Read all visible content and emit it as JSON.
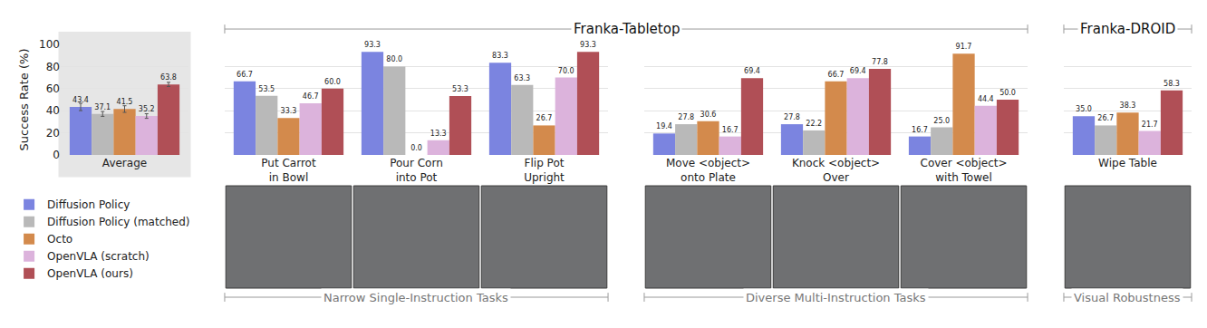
{
  "chart_data": {
    "type": "bar",
    "categories": [
      "Average",
      "Put Carrot\nin Bowl",
      "Pour Corn\ninto Pot",
      "Flip Pot\nUpright",
      "Move <object>\nonto Plate",
      "Knock <object>\nOver",
      "Cover <object>\nwith Towel",
      "Wipe Table"
    ],
    "y_label": "Success Rate (%)",
    "ylim": [
      0,
      100
    ],
    "yticks": [
      0,
      20,
      40,
      60,
      80,
      100
    ],
    "grid": true,
    "data_labels": true,
    "legend": "lower left",
    "series": [
      {
        "name": "Diffusion Policy",
        "color": "#7b84e0",
        "values": [
          43.4,
          66.7,
          93.3,
          83.3,
          19.4,
          27.8,
          16.7,
          35.0
        ],
        "value_labels": [
          "43.4",
          "66.7",
          "93.3",
          "83.3",
          "19.4",
          "27.8",
          "16.7",
          "35.0"
        ],
        "error": [
          3.3,
          null,
          null,
          null,
          null,
          null,
          null,
          null
        ]
      },
      {
        "name": "Diffusion Policy (matched)",
        "color": "#b9b9b9",
        "values": [
          37.1,
          53.5,
          80.0,
          63.3,
          27.8,
          22.2,
          25.0,
          26.7
        ],
        "value_labels": [
          "37.1",
          "53.5",
          "80.0",
          "63.3",
          "27.8",
          "22.2",
          "25.0",
          "26.7"
        ],
        "error": [
          2.2,
          null,
          null,
          null,
          null,
          null,
          null,
          null
        ]
      },
      {
        "name": "Octo",
        "color": "#d38a4c",
        "values": [
          41.5,
          33.3,
          0.0,
          26.7,
          30.6,
          66.7,
          91.7,
          38.3
        ],
        "value_labels": [
          "41.5",
          "33.3",
          "0.0",
          "26.7",
          "30.6",
          "66.7",
          "91.7",
          "38.3"
        ],
        "error": [
          3.0,
          null,
          null,
          null,
          null,
          null,
          null,
          null
        ]
      },
      {
        "name": "OpenVLA (scratch)",
        "color": "#dcb3dc",
        "values": [
          35.2,
          46.7,
          13.3,
          70.0,
          16.7,
          69.4,
          44.4,
          21.7
        ],
        "value_labels": [
          "35.2",
          "46.7",
          "13.3",
          "70.0",
          "16.7",
          "69.4",
          "44.4",
          "21.7"
        ],
        "error": [
          2.1,
          null,
          null,
          null,
          null,
          null,
          null,
          null
        ]
      },
      {
        "name": "OpenVLA (ours)",
        "color": "#b04f56",
        "values": [
          63.8,
          60.0,
          53.3,
          93.3,
          69.4,
          77.8,
          50.0,
          58.3
        ],
        "value_labels": [
          "63.8",
          "60.0",
          "53.3",
          "93.3",
          "69.4",
          "77.8",
          "50.0",
          "58.3"
        ],
        "error": [
          1.9,
          null,
          null,
          null,
          null,
          null,
          null,
          null
        ]
      }
    ],
    "group_labels": {
      "top": [
        {
          "text": "Franka-Tabletop",
          "categories": [
            "Put Carrot\nin Bowl",
            "Pour Corn\ninto Pot",
            "Flip Pot\nUpright",
            "Move <object>\nonto Plate",
            "Knock <object>\nOver",
            "Cover <object>\nwith Towel"
          ]
        },
        {
          "text": "Franka-DROID",
          "categories": [
            "Wipe Table"
          ]
        }
      ],
      "bottom": [
        {
          "text": "Narrow Single-Instruction Tasks",
          "categories": [
            "Put Carrot\nin Bowl",
            "Pour Corn\ninto Pot",
            "Flip Pot\nUpright"
          ]
        },
        {
          "text": "Diverse Multi-Instruction Tasks",
          "categories": [
            "Move <object>\nonto Plate",
            "Knock <object>\nOver",
            "Cover <object>\nwith Towel"
          ]
        },
        {
          "text": "Visual Robustness",
          "categories": [
            "Wipe Table"
          ]
        }
      ]
    }
  }
}
